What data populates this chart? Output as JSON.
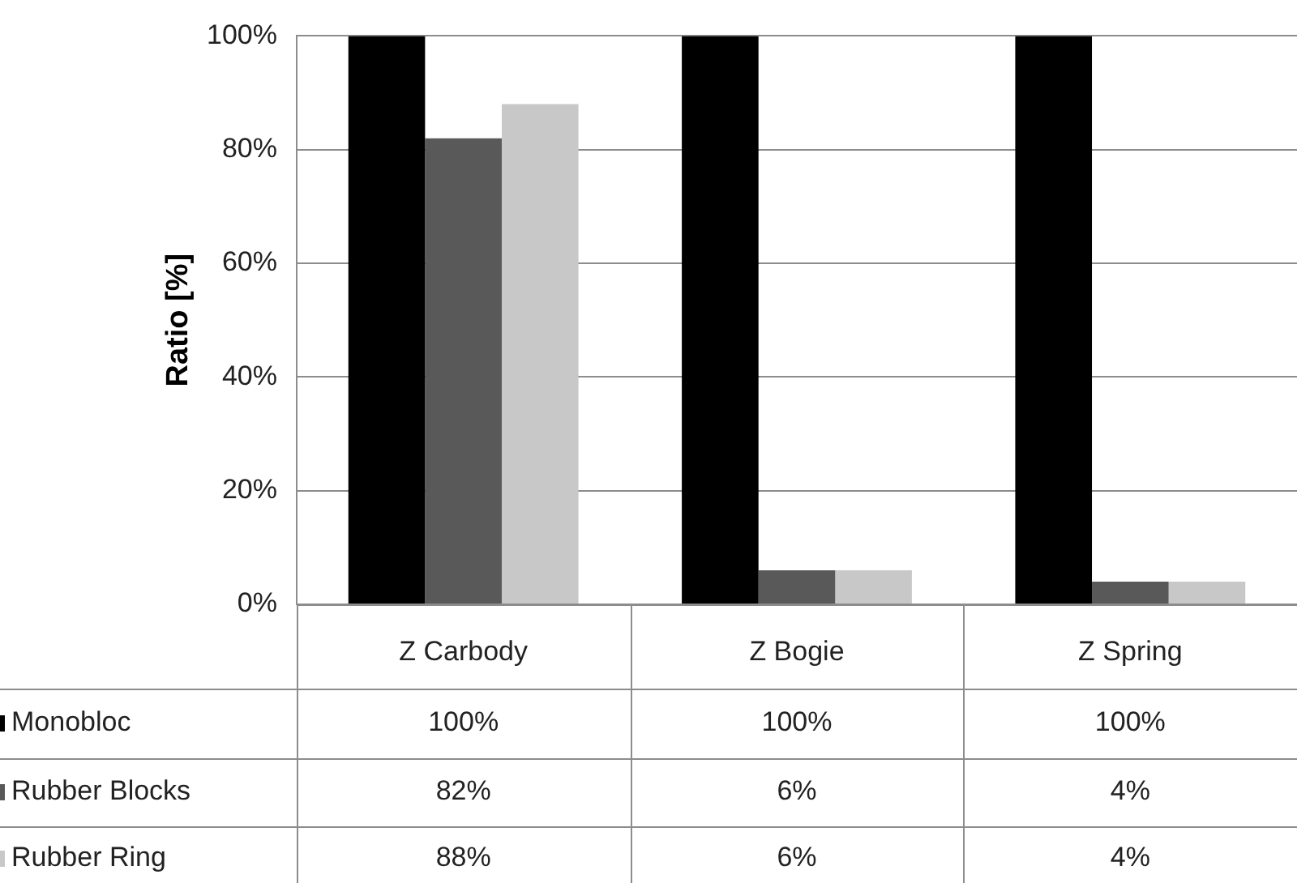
{
  "chart_data": {
    "type": "bar",
    "ylabel": "Ratio [%]",
    "categories": [
      "Z Carbody",
      "Z Bogie",
      "Z Spring"
    ],
    "series": [
      {
        "name": "Monobloc",
        "color": "#000000",
        "values": [
          100,
          100,
          100
        ],
        "value_labels": [
          "100%",
          "100%",
          "100%"
        ]
      },
      {
        "name": "Rubber Blocks",
        "color": "#595959",
        "values": [
          82,
          6,
          4
        ],
        "value_labels": [
          "82%",
          "6%",
          "4%"
        ]
      },
      {
        "name": "Rubber Ring",
        "color": "#c8c8c8",
        "values": [
          88,
          6,
          4
        ],
        "value_labels": [
          "88%",
          "6%",
          "4%"
        ]
      }
    ],
    "ylim": [
      0,
      100
    ],
    "yticks": [
      {
        "value": 0,
        "label": "0%"
      },
      {
        "value": 20,
        "label": "20%"
      },
      {
        "value": 40,
        "label": "40%"
      },
      {
        "value": 60,
        "label": "60%"
      },
      {
        "value": 80,
        "label": "80%"
      },
      {
        "value": 100,
        "label": "100%"
      }
    ],
    "grid": "y",
    "legend": "bottom left"
  }
}
